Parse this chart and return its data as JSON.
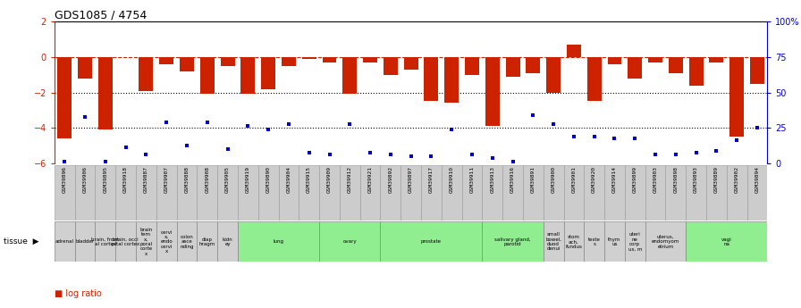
{
  "title": "GDS1085 / 4754",
  "ylim": [
    -6,
    2
  ],
  "yticks_left": [
    -6,
    -4,
    -2,
    0,
    2
  ],
  "yticks_right_labels": [
    "0",
    "25",
    "50",
    "75",
    "100%"
  ],
  "yticks_right_vals": [
    -6,
    -4,
    -2,
    0,
    2
  ],
  "samples": [
    "GSM39896",
    "GSM39906",
    "GSM39895",
    "GSM39918",
    "GSM39887",
    "GSM39907",
    "GSM39888",
    "GSM39908",
    "GSM39905",
    "GSM39919",
    "GSM39890",
    "GSM39904",
    "GSM39915",
    "GSM39909",
    "GSM39912",
    "GSM39921",
    "GSM39892",
    "GSM39897",
    "GSM39917",
    "GSM39910",
    "GSM39911",
    "GSM39913",
    "GSM39916",
    "GSM39891",
    "GSM39900",
    "GSM39901",
    "GSM39920",
    "GSM39914",
    "GSM39899",
    "GSM39903",
    "GSM39898",
    "GSM39893",
    "GSM39889",
    "GSM39902",
    "GSM39894"
  ],
  "log_ratio": [
    -4.6,
    -1.2,
    -4.1,
    0.0,
    -1.9,
    -0.4,
    -0.8,
    -2.1,
    -0.5,
    -2.1,
    -1.8,
    -0.5,
    -0.1,
    -0.3,
    -2.1,
    -0.3,
    -1.0,
    -0.7,
    -2.5,
    -2.6,
    -1.0,
    -3.9,
    -1.1,
    -0.9,
    -2.0,
    0.7,
    -2.5,
    -0.4,
    -1.2,
    -0.3,
    -0.9,
    -1.6,
    -0.3,
    -4.5,
    -1.5
  ],
  "percentile_rank": [
    -5.9,
    -3.4,
    -5.9,
    -5.1,
    -5.5,
    -3.7,
    -5.0,
    -3.7,
    -5.2,
    -3.9,
    -4.1,
    -3.8,
    -5.4,
    -5.5,
    -3.8,
    -5.4,
    -5.5,
    -5.6,
    -5.6,
    -4.1,
    -5.5,
    -5.7,
    -5.9,
    -3.3,
    -3.8,
    -4.5,
    -4.5,
    -4.6,
    -4.6,
    -5.5,
    -5.5,
    -5.4,
    -5.3,
    -4.7,
    -4.0
  ],
  "tissue_groups": [
    {
      "label": "adrenal",
      "start": 0,
      "end": 1,
      "color": "#d0d0d0"
    },
    {
      "label": "bladder",
      "start": 1,
      "end": 2,
      "color": "#d0d0d0"
    },
    {
      "label": "brain, front\nal cortex",
      "start": 2,
      "end": 3,
      "color": "#d0d0d0"
    },
    {
      "label": "brain, occi\npital cortex",
      "start": 3,
      "end": 4,
      "color": "#d0d0d0"
    },
    {
      "label": "brain\ntem\nx,\nporal\ncorte\nx",
      "start": 4,
      "end": 5,
      "color": "#d0d0d0"
    },
    {
      "label": "cervi\nx,\nendo\ncervi\nx",
      "start": 5,
      "end": 6,
      "color": "#d0d0d0"
    },
    {
      "label": "colon\nasce\nnding",
      "start": 6,
      "end": 7,
      "color": "#d0d0d0"
    },
    {
      "label": "diap\nhragm",
      "start": 7,
      "end": 8,
      "color": "#d0d0d0"
    },
    {
      "label": "kidn\ney",
      "start": 8,
      "end": 9,
      "color": "#d0d0d0"
    },
    {
      "label": "lung",
      "start": 9,
      "end": 13,
      "color": "#90ee90"
    },
    {
      "label": "ovary",
      "start": 13,
      "end": 16,
      "color": "#90ee90"
    },
    {
      "label": "prostate",
      "start": 16,
      "end": 21,
      "color": "#90ee90"
    },
    {
      "label": "salivary gland,\nparotid",
      "start": 21,
      "end": 24,
      "color": "#90ee90"
    },
    {
      "label": "small\nbowel,\nduod\ndenui",
      "start": 24,
      "end": 25,
      "color": "#d0d0d0"
    },
    {
      "label": "stom\nach,\nfundus",
      "start": 25,
      "end": 26,
      "color": "#d0d0d0"
    },
    {
      "label": "teste\ns",
      "start": 26,
      "end": 27,
      "color": "#d0d0d0"
    },
    {
      "label": "thym\nus",
      "start": 27,
      "end": 28,
      "color": "#d0d0d0"
    },
    {
      "label": "uteri\nne\ncorp\nus, m",
      "start": 28,
      "end": 29,
      "color": "#d0d0d0"
    },
    {
      "label": "uterus,\nendomyom\netrium",
      "start": 29,
      "end": 31,
      "color": "#d0d0d0"
    },
    {
      "label": "vagi\nna",
      "start": 31,
      "end": 35,
      "color": "#90ee90"
    }
  ],
  "bar_color": "#cc2200",
  "dot_color": "#0000cc",
  "title_color": "#000000",
  "left_axis_color": "#cc2200",
  "right_axis_color": "#0000cc",
  "bg_color": "#ffffff",
  "hline_color": "#cc2200",
  "dotted_color": "#000000"
}
